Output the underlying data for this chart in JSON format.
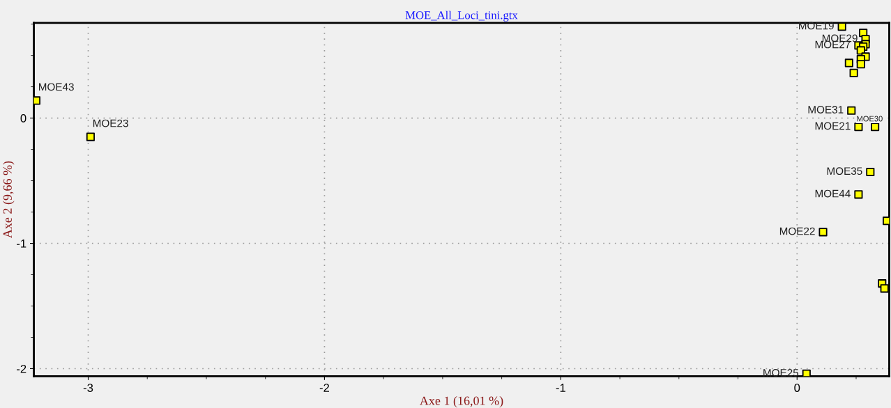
{
  "chart_data": {
    "type": "scatter",
    "title": "MOE_All_Loci_tini.gtx",
    "xlabel": "Axe 1 (16,01 %)",
    "ylabel": "Axe 2 (9,66 %)",
    "series": [
      {
        "color": "#ffff00",
        "x": [
          -3.22,
          -2.99,
          0.19,
          0.28,
          0.29,
          0.29,
          0.26,
          0.28,
          0.27,
          0.29,
          0.27,
          0.22,
          0.27,
          0.24,
          0.23,
          0.26,
          0.33,
          0.31,
          0.26,
          0.11,
          0.38,
          0.36,
          0.37,
          0.04
        ],
        "values": [
          0.14,
          -0.15,
          0.73,
          0.68,
          0.63,
          0.59,
          0.58,
          0.57,
          0.54,
          0.49,
          0.47,
          0.44,
          0.43,
          0.36,
          0.06,
          -0.07,
          -0.07,
          -0.43,
          -0.61,
          -0.91,
          -0.82,
          -1.32,
          -1.36,
          -2.04
        ]
      }
    ],
    "annotations": [
      {
        "text": "MOE43",
        "x": -3.22,
        "y": 0.14
      },
      {
        "text": "MOE23",
        "x": -2.99,
        "y": -0.15
      },
      {
        "text": "MOE19",
        "x": 0.19,
        "y": 0.73
      },
      {
        "text": "MOE29",
        "x": 0.29,
        "y": 0.63
      },
      {
        "text": "MOE27",
        "x": 0.26,
        "y": 0.58
      },
      {
        "text": "MOE31",
        "x": 0.23,
        "y": 0.06
      },
      {
        "text": "MOE21",
        "x": 0.26,
        "y": -0.07
      },
      {
        "text": "MOE30",
        "x": 0.33,
        "y": -0.07
      },
      {
        "text": "MOE35",
        "x": 0.31,
        "y": -0.43
      },
      {
        "text": "MOE44",
        "x": 0.26,
        "y": -0.61
      },
      {
        "text": "MOE22",
        "x": 0.11,
        "y": -0.91
      },
      {
        "text": "MOE25",
        "x": 0.04,
        "y": -2.04
      }
    ],
    "xlim": [
      -3.23,
      0.39
    ],
    "ylim": [
      -2.06,
      0.76
    ],
    "xticks": [
      -3,
      {
        "value": -2.75,
        "label": null
      },
      {
        "value": -2.5,
        "label": null
      },
      {
        "value": -2.25,
        "label": null
      },
      -2,
      {
        "value": -1.75,
        "label": null
      },
      {
        "value": -1.5,
        "label": null
      },
      {
        "value": -1.25,
        "label": null
      },
      -1,
      {
        "value": -0.75,
        "label": null
      },
      {
        "value": -0.5,
        "label": null
      },
      {
        "value": -0.25,
        "label": null
      },
      0,
      {
        "value": 0.25,
        "label": null
      }
    ],
    "yticks": [
      -2,
      {
        "value": -1.75,
        "label": null
      },
      {
        "value": -1.5,
        "label": null
      },
      {
        "value": -1.25,
        "label": null
      },
      -1,
      {
        "value": -0.75,
        "label": null
      },
      {
        "value": -0.5,
        "label": null
      },
      {
        "value": -0.25,
        "label": null
      },
      0,
      {
        "value": 0.25,
        "label": null
      },
      {
        "value": 0.5,
        "label": null
      },
      {
        "value": 0.75,
        "label": null
      }
    ],
    "grid": true,
    "marker": "square",
    "legend": false
  }
}
